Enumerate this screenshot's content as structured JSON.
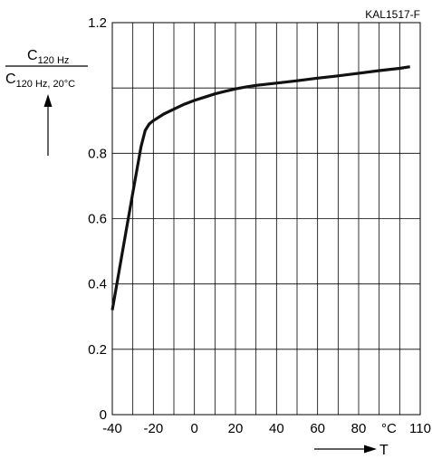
{
  "chart_data": {
    "type": "line",
    "code": "KAL1517-F",
    "ylabel": {
      "numerator": "C",
      "numerator_sub": "120 Hz",
      "denominator": "C",
      "denominator_sub": "120 Hz, 20°C"
    },
    "xlabel": "T",
    "x_unit": "°C",
    "xlim": [
      -40,
      110
    ],
    "ylim": [
      0,
      1.2
    ],
    "x_ticks": [
      -40,
      -20,
      0,
      20,
      40,
      60,
      80,
      110
    ],
    "x_tick_labels": [
      "-40",
      "-20",
      "0",
      "20",
      "40",
      "60",
      "80",
      "110"
    ],
    "y_ticks": [
      0,
      0.2,
      0.4,
      0.6,
      0.8,
      1.2
    ],
    "y_tick_labels": [
      "0",
      "0.2",
      "0.4",
      "0.6",
      "0.8",
      "1.2"
    ],
    "grid": true,
    "series": [
      {
        "x": [
          -40,
          -35,
          -30,
          -28,
          -26,
          -24,
          -22,
          -20,
          -15,
          -10,
          -5,
          0,
          5,
          10,
          15,
          20,
          25,
          30,
          40,
          50,
          60,
          70,
          80,
          90,
          100,
          105
        ],
        "y": [
          0.32,
          0.5,
          0.68,
          0.75,
          0.82,
          0.87,
          0.89,
          0.9,
          0.92,
          0.935,
          0.95,
          0.962,
          0.972,
          0.982,
          0.99,
          0.997,
          1.003,
          1.008,
          1.015,
          1.022,
          1.03,
          1.037,
          1.045,
          1.053,
          1.06,
          1.065
        ]
      }
    ]
  }
}
